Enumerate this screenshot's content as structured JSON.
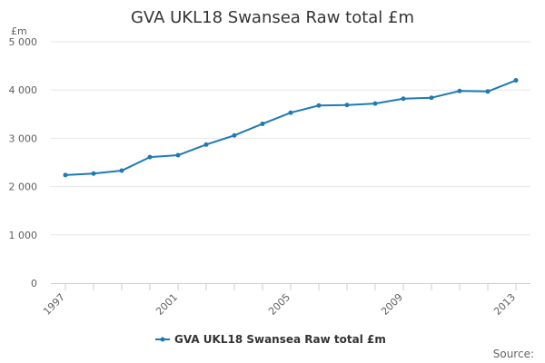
{
  "chart_data": {
    "type": "line",
    "title": "GVA UKL18 Swansea Raw total £m",
    "ylabel": "£m",
    "xlabel": "",
    "x": [
      1997,
      1998,
      1999,
      2000,
      2001,
      2002,
      2003,
      2004,
      2005,
      2006,
      2007,
      2008,
      2009,
      2010,
      2011,
      2012,
      2013
    ],
    "x_tick_labels": [
      "1997",
      "2001",
      "2005",
      "2009",
      "2013"
    ],
    "y_tick_labels": [
      "0",
      "1 000",
      "2 000",
      "3 000",
      "4 000",
      "5 000"
    ],
    "y_ticks": [
      0,
      1000,
      2000,
      3000,
      4000,
      5000
    ],
    "xlim": [
      1997,
      2013
    ],
    "ylim": [
      0,
      5000
    ],
    "grid": true,
    "legend_position": "bottom-center",
    "series": [
      {
        "name": "GVA UKL18 Swansea Raw total £m",
        "color": "#1f7ab3",
        "values": [
          2240,
          2270,
          2330,
          2610,
          2650,
          2870,
          3060,
          3300,
          3530,
          3680,
          3690,
          3720,
          3820,
          3840,
          3980,
          3970,
          4200
        ]
      }
    ],
    "credit": "Source:"
  }
}
